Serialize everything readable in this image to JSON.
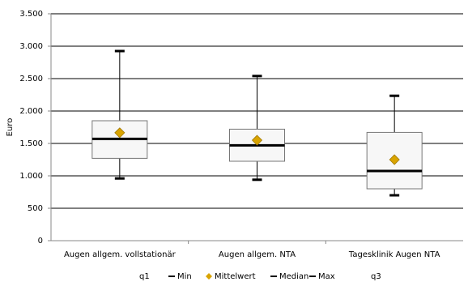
{
  "chart_data": {
    "type": "box",
    "y_label": "Euro",
    "categories": [
      "Augen allgem. vollstationär",
      "Augen allgem. NTA",
      "Tagesklinik Augen NTA"
    ],
    "series": [
      {
        "name": "q1",
        "values": [
          1270,
          1225,
          800
        ]
      },
      {
        "name": "Min",
        "color": "#000000",
        "marker": "dash",
        "values": [
          960,
          940,
          700
        ]
      },
      {
        "name": "Mittelwert",
        "color": "#d9a400",
        "marker": "diamond",
        "values": [
          1665,
          1550,
          1250
        ]
      },
      {
        "name": "Median",
        "color": "#000000",
        "marker": "dash",
        "values": [
          1570,
          1470,
          1075
        ]
      },
      {
        "name": "Max",
        "color": "#000000",
        "marker": "dash",
        "values": [
          2925,
          2540,
          2235
        ]
      },
      {
        "name": "q3",
        "values": [
          1850,
          1720,
          1670
        ]
      }
    ],
    "box_fill": "#f7f7f7",
    "ylim": [
      0,
      3500
    ],
    "yticks": [
      0,
      500,
      {
        "value": 1000,
        "label": "1.000"
      },
      {
        "value": 1500,
        "label": "1.500"
      },
      {
        "value": 2000,
        "label": "2.000"
      },
      {
        "value": 2500,
        "label": "2.500"
      },
      {
        "value": 3000,
        "label": "3.000"
      },
      {
        "value": 3500,
        "label": "3.500"
      }
    ],
    "grid": true
  }
}
